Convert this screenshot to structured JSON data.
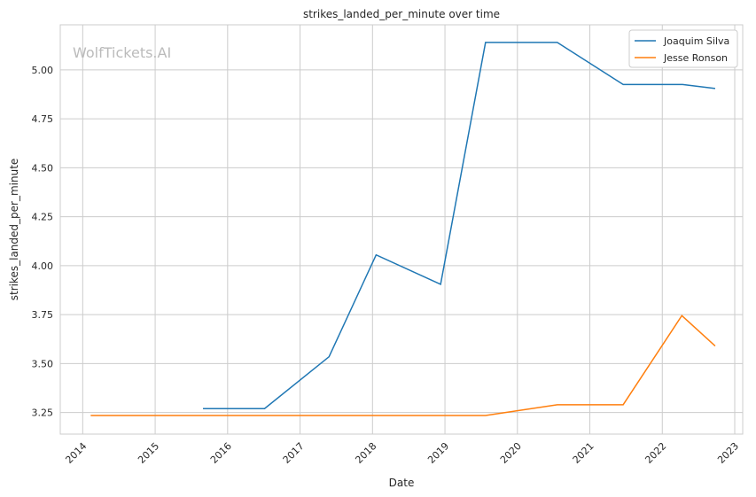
{
  "chart_data": {
    "type": "line",
    "title": "strikes_landed_per_minute over time",
    "xlabel": "Date",
    "ylabel": "strikes_landed_per_minute",
    "watermark": "WolfTickets.AI",
    "xlim": [
      2013.69,
      2023.11
    ],
    "ylim": [
      3.14,
      5.23
    ],
    "xticks": [
      2014,
      2015,
      2016,
      2017,
      2018,
      2019,
      2020,
      2021,
      2022,
      2023
    ],
    "xtick_labels": [
      "2014",
      "2015",
      "2016",
      "2017",
      "2018",
      "2019",
      "2020",
      "2021",
      "2022",
      "2023"
    ],
    "yticks": [
      3.25,
      3.5,
      3.75,
      4.0,
      4.25,
      4.5,
      4.75,
      5.0
    ],
    "ytick_labels": [
      "3.25",
      "3.50",
      "3.75",
      "4.00",
      "4.25",
      "4.50",
      "4.75",
      "5.00"
    ],
    "grid": true,
    "legend_position": "top-right",
    "series": [
      {
        "name": "Joaquim Silva",
        "color": "#1f77b4",
        "x": [
          2015.66,
          2016.51,
          2017.4,
          2018.05,
          2018.94,
          2019.56,
          2020.55,
          2021.46,
          2022.28,
          2022.73
        ],
        "y": [
          3.27,
          3.27,
          3.535,
          4.055,
          3.905,
          5.14,
          5.14,
          4.925,
          4.925,
          4.905
        ]
      },
      {
        "name": "Jesse Ronson",
        "color": "#ff7f0e",
        "x": [
          2014.11,
          2019.56,
          2020.55,
          2021.46,
          2022.27,
          2022.73
        ],
        "y": [
          3.235,
          3.235,
          3.29,
          3.29,
          3.745,
          3.59
        ]
      }
    ]
  }
}
